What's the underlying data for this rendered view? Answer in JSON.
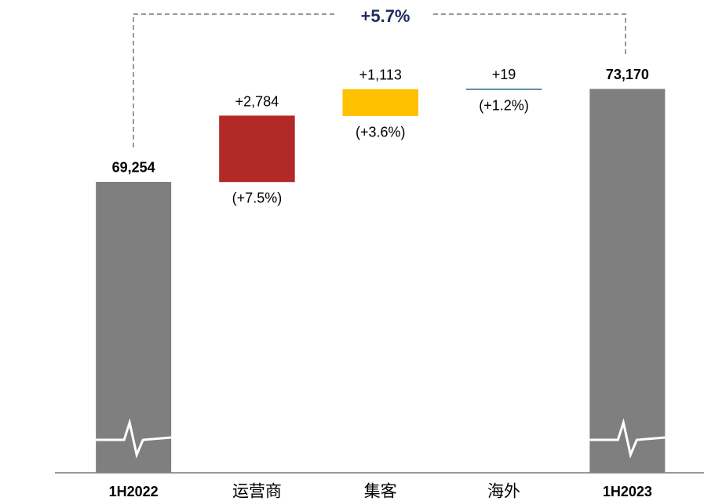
{
  "chart_data": {
    "type": "waterfall",
    "categories": [
      "1H2022",
      "运营商",
      "集客",
      "海外",
      "1H2023"
    ],
    "values": [
      69254,
      2784,
      1113,
      19,
      73170
    ],
    "value_labels": [
      "69,254",
      "+2,784",
      "+1,113",
      "+19",
      "73,170"
    ],
    "pct_labels": [
      null,
      "(+7.5%)",
      "(+3.6%)",
      "(+1.2%)",
      null
    ],
    "colors": [
      "#7f7f7f",
      "#b22a27",
      "#ffc000",
      "#1f6b7a",
      "#7f7f7f"
    ],
    "total_change": "+5.7%",
    "ylim": [
      57000,
      75000
    ],
    "axis_break": true
  }
}
